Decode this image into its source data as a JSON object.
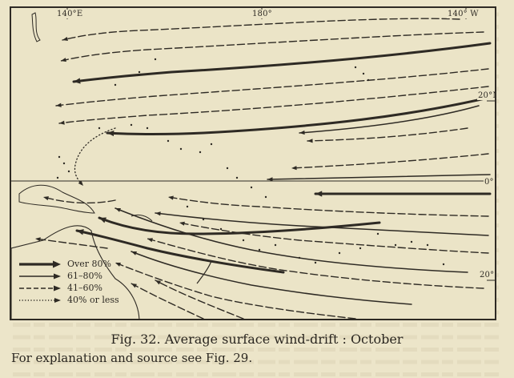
{
  "map": {
    "longitude_labels": [
      "140°E",
      "180°",
      "140° W"
    ],
    "latitude_labels": [
      "20°N",
      "0°",
      "20°S"
    ]
  },
  "legend": [
    {
      "label": "Over 80%",
      "style": "thick"
    },
    {
      "label": "61–80%",
      "style": "solid"
    },
    {
      "label": "41–60%",
      "style": "dashed"
    },
    {
      "label": "40% or less",
      "style": "dotted"
    }
  ],
  "caption": "Fig. 32.  Average surface wind-drift :  October",
  "note": "For explanation and source see Fig. 29.",
  "colors": {
    "paper": "#ebe4c7",
    "ink": "#2e2a24"
  }
}
